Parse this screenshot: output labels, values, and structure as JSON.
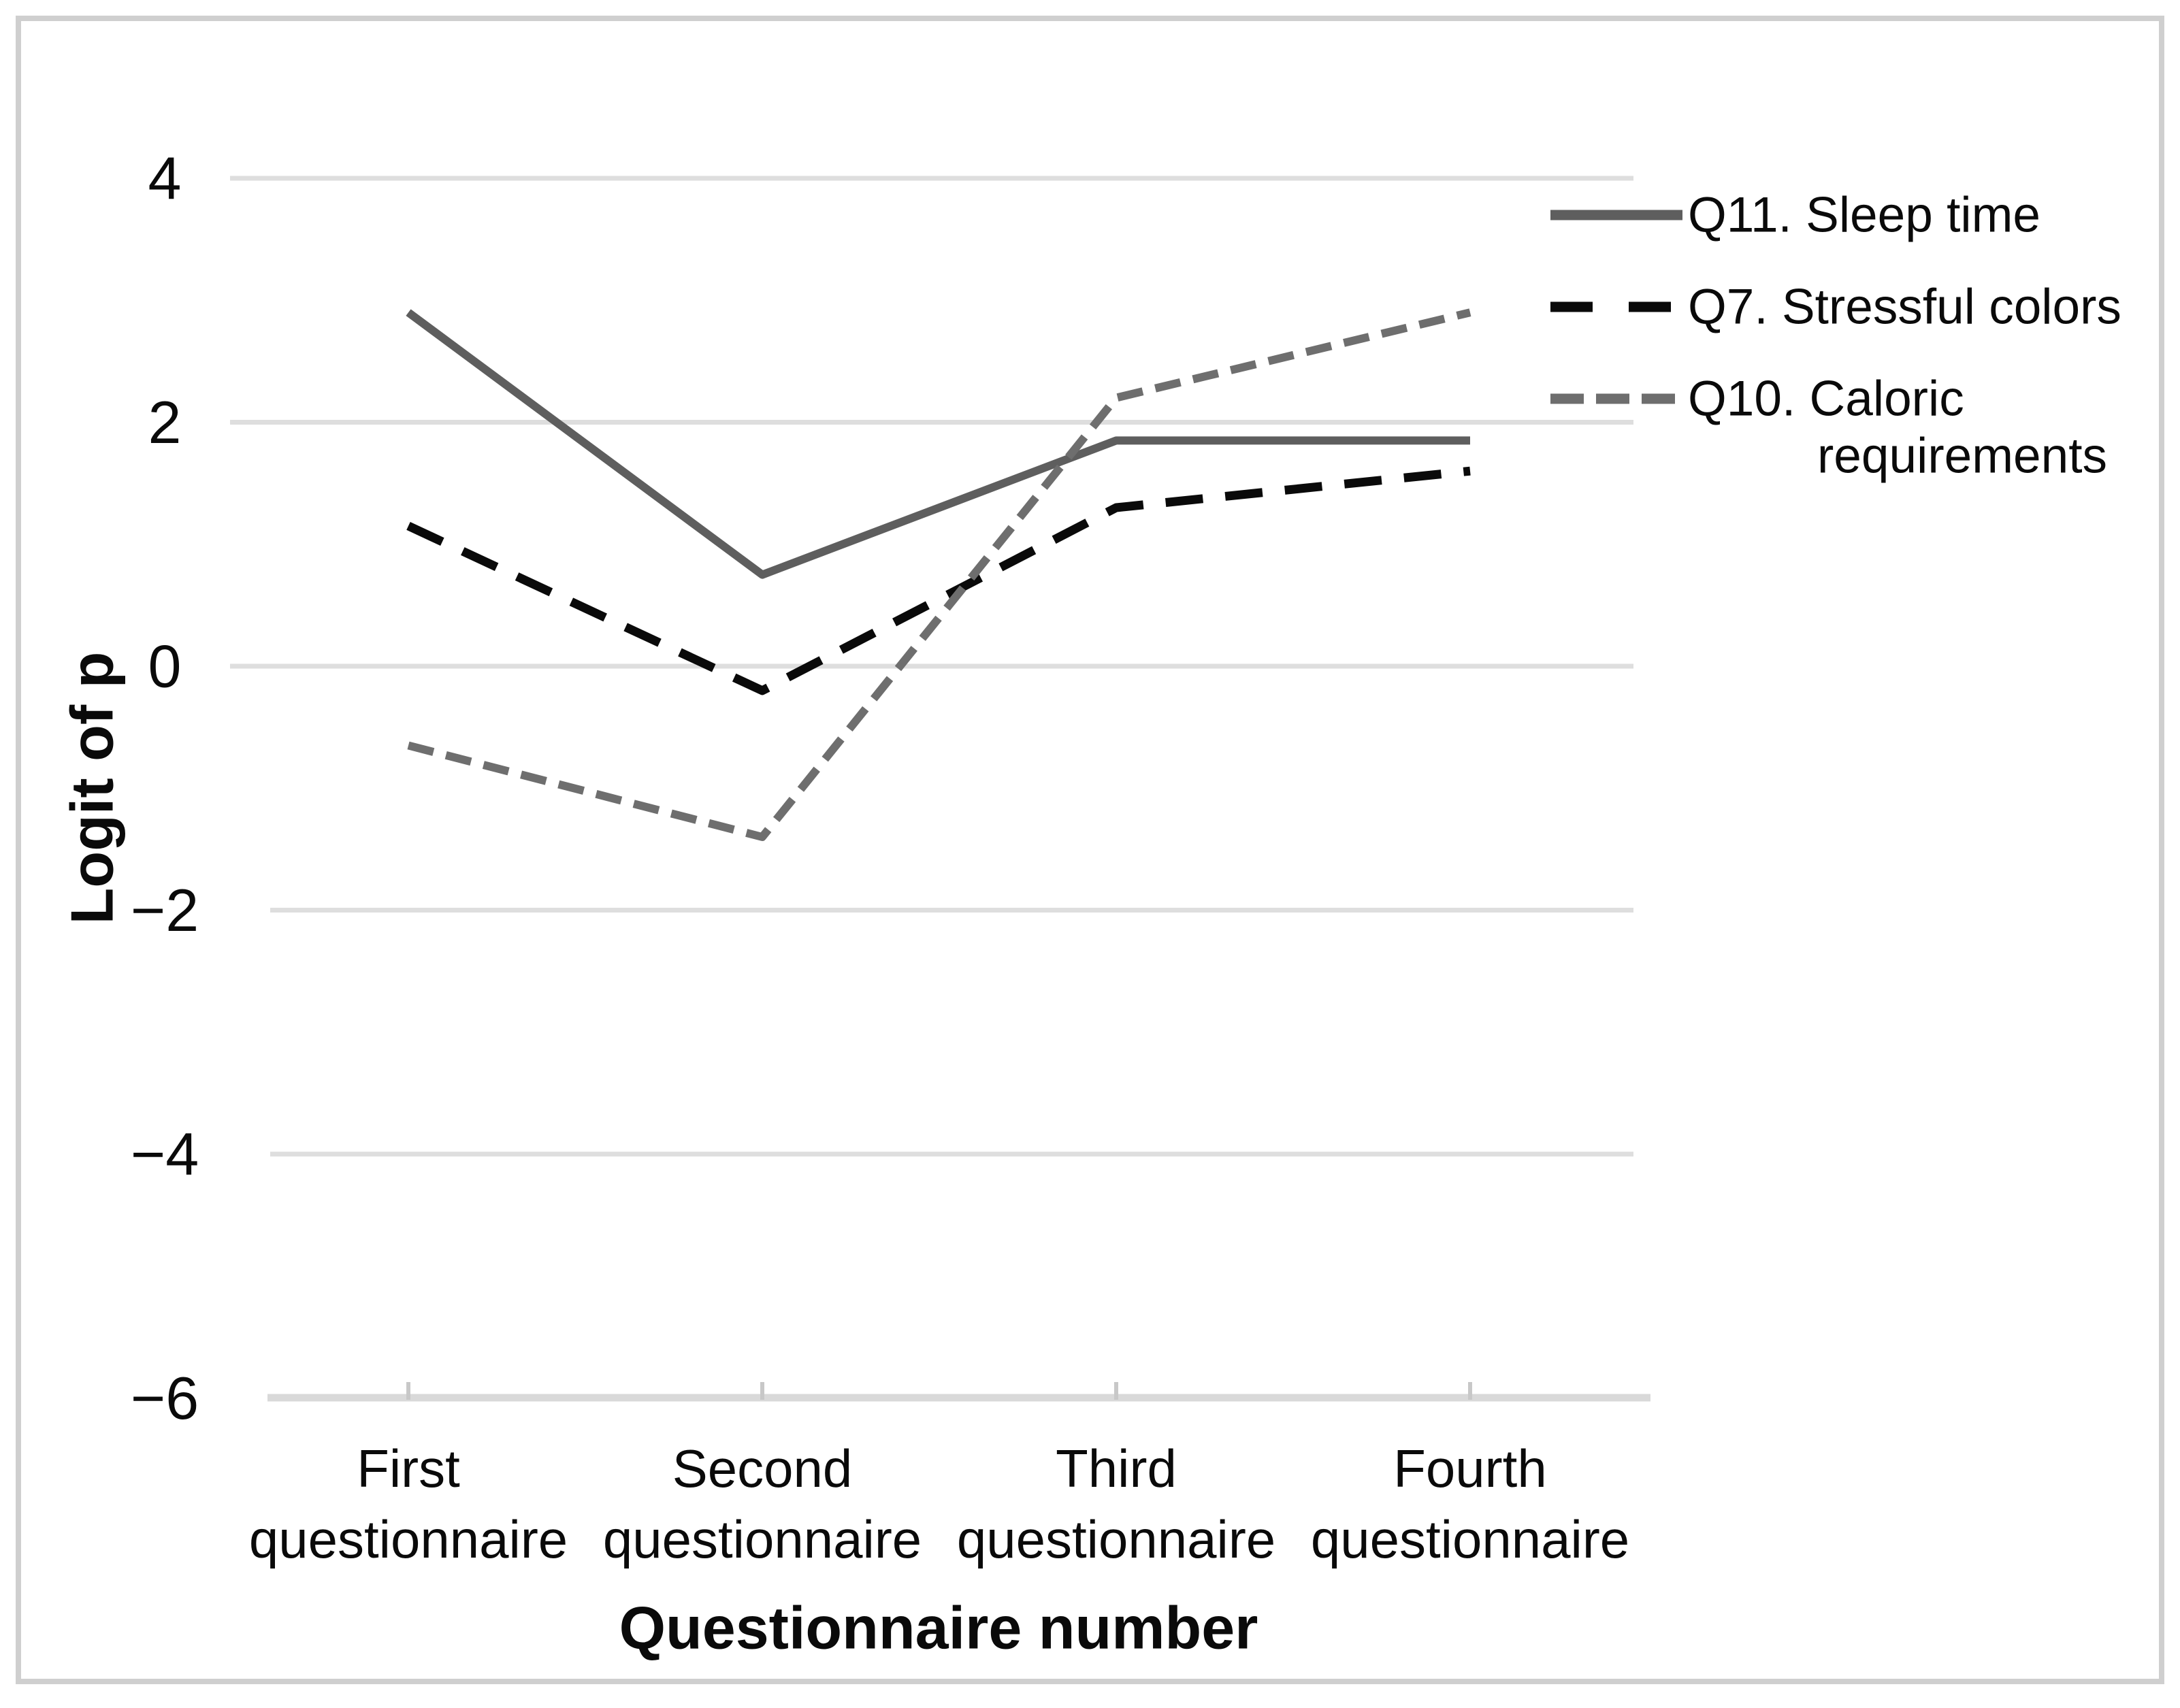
{
  "figure": {
    "background": "#ffffff",
    "border_color": "#cfcfcf"
  },
  "chart_data": {
    "type": "line",
    "title": "",
    "xlabel": "Questionnaire number",
    "ylabel": "Logit of p",
    "categories": [
      "First questionnaire",
      "Second questionnaire",
      "Third questionnaire",
      "Fourth questionnaire"
    ],
    "category_label_lines": [
      [
        "First",
        "questionnaire"
      ],
      [
        "Second",
        "questionnaire"
      ],
      [
        "Third",
        "questionnaire"
      ],
      [
        "Fourth",
        "questionnaire"
      ]
    ],
    "ylim": [
      -6,
      4
    ],
    "yticks": [
      4,
      2,
      0,
      -2,
      -4,
      -6
    ],
    "ytick_labels": [
      "4",
      "2",
      "0",
      "−2",
      "−4",
      "−6"
    ],
    "grid": true,
    "grid_color": "#dedede",
    "axis_color": "#d9d9d9",
    "legend_position": "right",
    "series": [
      {
        "name": "Q11. Sleep time",
        "legend_lines": [
          "Q11. Sleep time"
        ],
        "values": [
          2.9,
          0.75,
          1.85,
          1.85
        ],
        "color": "#5e5e5e",
        "dash": "solid",
        "legend_dash": "solid",
        "width": 12
      },
      {
        "name": "Q7. Stressful colors",
        "legend_lines": [
          "Q7. Stressful colors"
        ],
        "values": [
          1.15,
          -0.2,
          1.3,
          1.6
        ],
        "color": "#0a0a0a",
        "dash": "55 33",
        "legend_dash": "62 53",
        "width": 13
      },
      {
        "name": "Q10. Caloric requirements",
        "legend_lines": [
          "Q10. Caloric",
          "requirements"
        ],
        "values": [
          -0.65,
          -1.4,
          2.2,
          2.9
        ],
        "color": "#6e6e6e",
        "dash": "38 19",
        "legend_dash": "49 18",
        "width": 12
      }
    ]
  }
}
